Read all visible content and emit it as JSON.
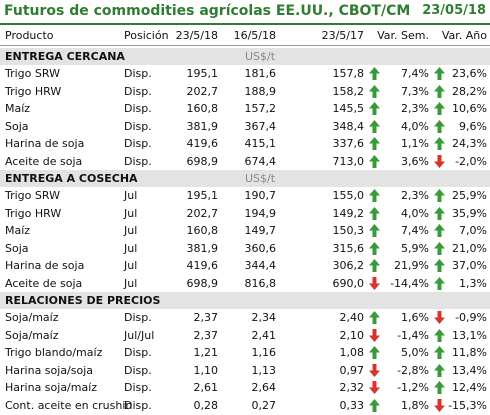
{
  "header": {
    "title": "Futuros de commodities agrícolas EE.UU., CBOT/CM",
    "date": "23/05/18"
  },
  "columns": [
    "Producto",
    "Posición",
    "23/5/18",
    "16/5/18",
    "23/5/17",
    "Var. Sem.",
    "Var. Año"
  ],
  "sections": [
    {
      "title": "ENTREGA CERCANA",
      "unit": "US$/t",
      "rows": [
        [
          "Trigo SRW",
          "Disp.",
          "195,1",
          "181,6",
          "157,8",
          "7,4%",
          "23,6%"
        ],
        [
          "Trigo HRW",
          "Disp.",
          "202,7",
          "188,9",
          "158,2",
          "7,3%",
          "28,2%"
        ],
        [
          "Maíz",
          "Disp.",
          "160,8",
          "157,2",
          "145,5",
          "2,3%",
          "10,6%"
        ],
        [
          "Soja",
          "Disp.",
          "381,9",
          "367,4",
          "348,4",
          "4,0%",
          "9,6%"
        ],
        [
          "Harina de soja",
          "Disp.",
          "419,6",
          "415,1",
          "337,6",
          "1,1%",
          "24,3%"
        ],
        [
          "Aceite de soja",
          "Disp.",
          "698,9",
          "674,4",
          "713,0",
          "3,6%",
          "-2,0%"
        ]
      ]
    },
    {
      "title": "ENTREGA A COSECHA",
      "unit": "US$/t",
      "rows": [
        [
          "Trigo SRW",
          "Jul",
          "195,1",
          "190,7",
          "155,0",
          "2,3%",
          "25,9%"
        ],
        [
          "Trigo HRW",
          "Jul",
          "202,7",
          "194,9",
          "149,2",
          "4,0%",
          "35,9%"
        ],
        [
          "Maíz",
          "Jul",
          "160,8",
          "149,7",
          "150,3",
          "7,4%",
          "7,0%"
        ],
        [
          "Soja",
          "Jul",
          "381,9",
          "360,6",
          "315,6",
          "5,9%",
          "21,0%"
        ],
        [
          "Harina de soja",
          "Jul",
          "419,6",
          "344,4",
          "306,2",
          "21,9%",
          "37,0%"
        ],
        [
          "Aceite de soja",
          "Jul",
          "698,9",
          "816,8",
          "690,0",
          "-14,4%",
          "1,3%"
        ]
      ]
    },
    {
      "title": "RELACIONES DE PRECIOS",
      "rows": [
        [
          "Soja/maíz",
          "Disp.",
          "2,37",
          "2,34",
          "2,40",
          "1,6%",
          "-0,9%"
        ],
        [
          "Soja/maíz",
          "Jul/Jul",
          "2,37",
          "2,41",
          "2,10",
          "-1,4%",
          "13,1%"
        ],
        [
          "Trigo blando/maíz",
          "Disp.",
          "1,21",
          "1,16",
          "1,08",
          "5,0%",
          "11,8%"
        ],
        [
          "Harina soja/soja",
          "Disp.",
          "1,10",
          "1,13",
          "0,97",
          "-2,8%",
          "13,4%"
        ],
        [
          "Harina soja/maíz",
          "Disp.",
          "2,61",
          "2,64",
          "2,32",
          "-1,2%",
          "12,4%"
        ],
        [
          "Cont. aceite en crushin",
          "Disp.",
          "0,28",
          "0,27",
          "0,33",
          "1,8%",
          "-15,3%"
        ]
      ]
    }
  ]
}
